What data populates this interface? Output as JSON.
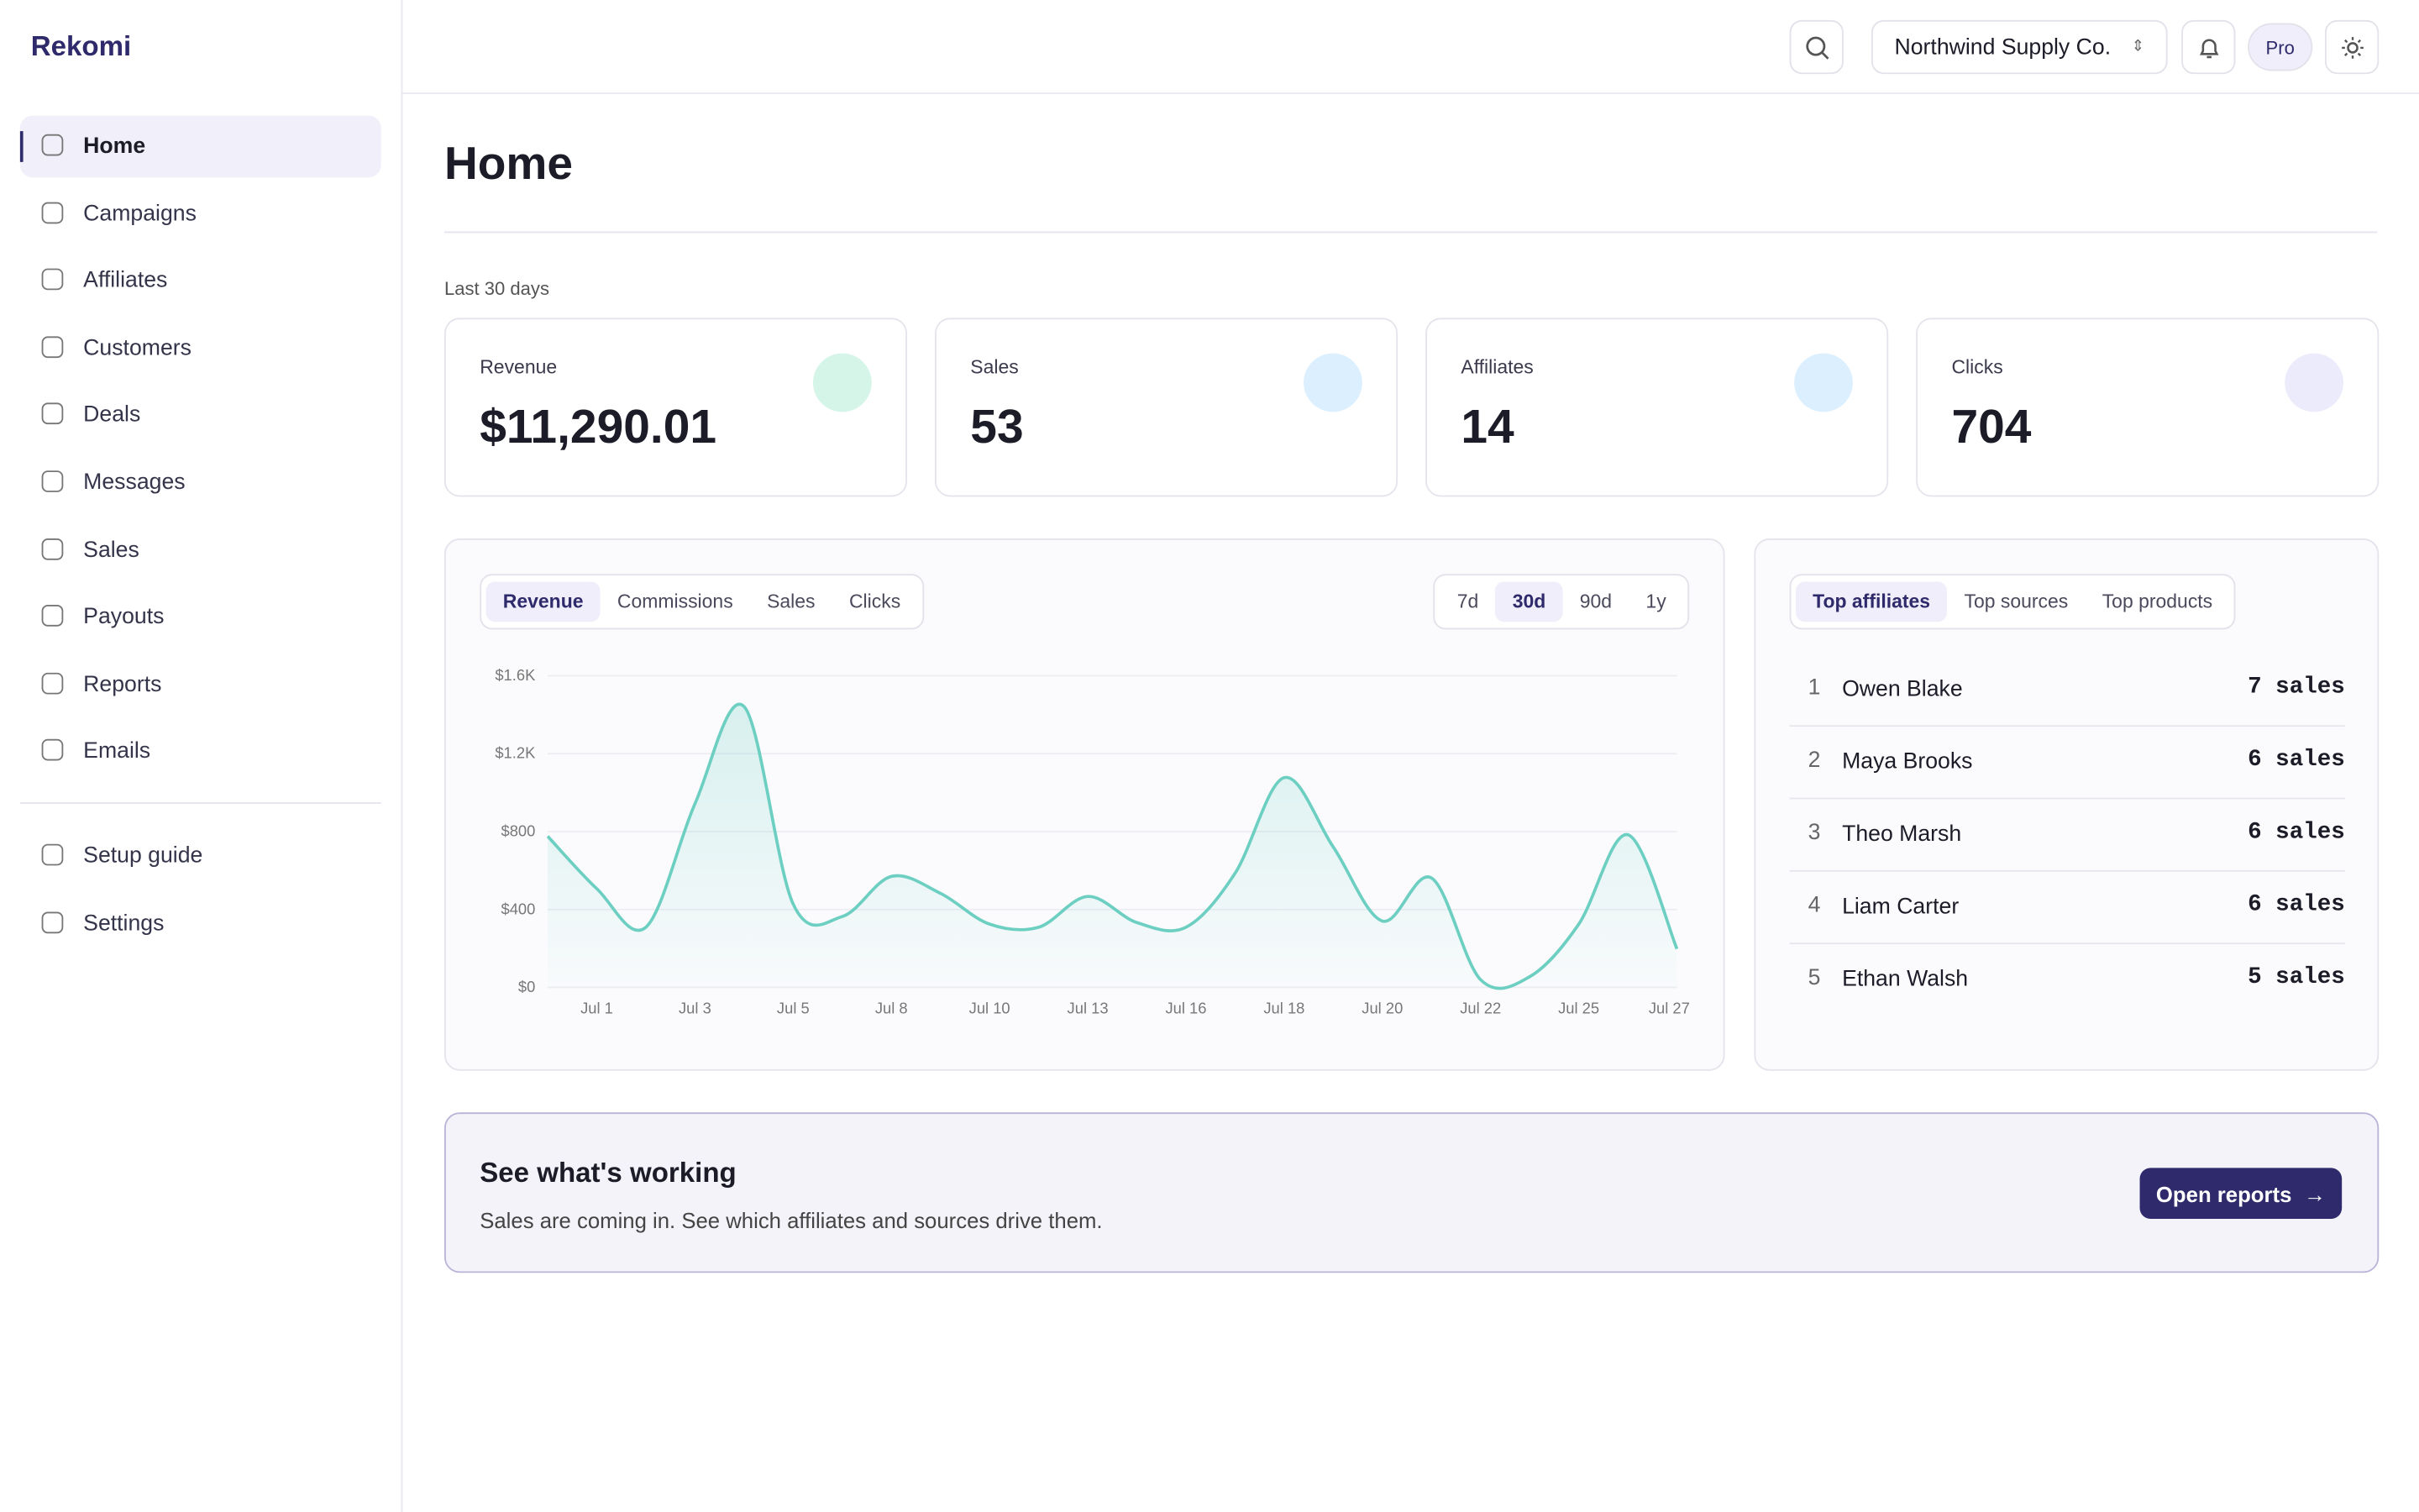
{
  "brand": "Rekomi",
  "nav": {
    "items": [
      "Home",
      "Campaigns",
      "Affiliates",
      "Customers",
      "Deals",
      "Messages",
      "Sales",
      "Payouts",
      "Reports",
      "Emails"
    ],
    "secondary": [
      "Setup guide",
      "Settings"
    ]
  },
  "header": {
    "workspace": "Northwind Supply Co.",
    "plan": "Pro"
  },
  "page": {
    "title": "Home",
    "period": "Last 30 days"
  },
  "stats": [
    {
      "label": "Revenue",
      "value": "$11,290.01"
    },
    {
      "label": "Sales",
      "value": "53"
    },
    {
      "label": "Affiliates",
      "value": "14"
    },
    {
      "label": "Clicks",
      "value": "704"
    }
  ],
  "chart_tabs": [
    "Revenue",
    "Commissions",
    "Sales",
    "Clicks"
  ],
  "ranges": [
    "7d",
    "30d",
    "90d",
    "1y"
  ],
  "chart_data": {
    "type": "area",
    "color": "#6ccfc2",
    "categories": [
      null,
      "Jul 1",
      null,
      "Jul 3",
      null,
      "Jul 5",
      null,
      "Jul 8",
      null,
      "Jul 10",
      null,
      "Jul 13",
      null,
      "Jul 16",
      null,
      "Jul 18",
      null,
      "Jul 20",
      null,
      "Jul 22",
      null,
      "Jul 25",
      null,
      "Jul 27"
    ],
    "values": [
      776,
      507,
      309,
      943,
      1442,
      428,
      364,
      570,
      483,
      325,
      309,
      467,
      333,
      309,
      586,
      1077,
      721,
      341,
      562,
      40,
      55,
      325,
      784,
      198
    ],
    "ylim": [
      0,
      1600
    ],
    "yticks": [
      {
        "value": 0,
        "label": "$0"
      },
      {
        "value": 400,
        "label": "$400"
      },
      {
        "value": 800,
        "label": "$800"
      },
      {
        "value": 1200,
        "label": "$1.2K"
      },
      {
        "value": 1600,
        "label": "$1.6K"
      }
    ],
    "grid": true
  },
  "leaderboard": {
    "tabs": [
      "Top affiliates",
      "Top sources",
      "Top products"
    ],
    "rows": [
      {
        "rank": "1",
        "name": "Owen Blake",
        "sales": "7 sales"
      },
      {
        "rank": "2",
        "name": "Maya Brooks",
        "sales": "6 sales"
      },
      {
        "rank": "3",
        "name": "Theo Marsh",
        "sales": "6 sales"
      },
      {
        "rank": "4",
        "name": "Liam Carter",
        "sales": "6 sales"
      },
      {
        "rank": "5",
        "name": "Ethan Walsh",
        "sales": "5 sales"
      }
    ]
  },
  "banner": {
    "title": "See what's working",
    "text": "Sales are coming in. See which affiliates and sources drive them.",
    "button": "Open reports"
  }
}
